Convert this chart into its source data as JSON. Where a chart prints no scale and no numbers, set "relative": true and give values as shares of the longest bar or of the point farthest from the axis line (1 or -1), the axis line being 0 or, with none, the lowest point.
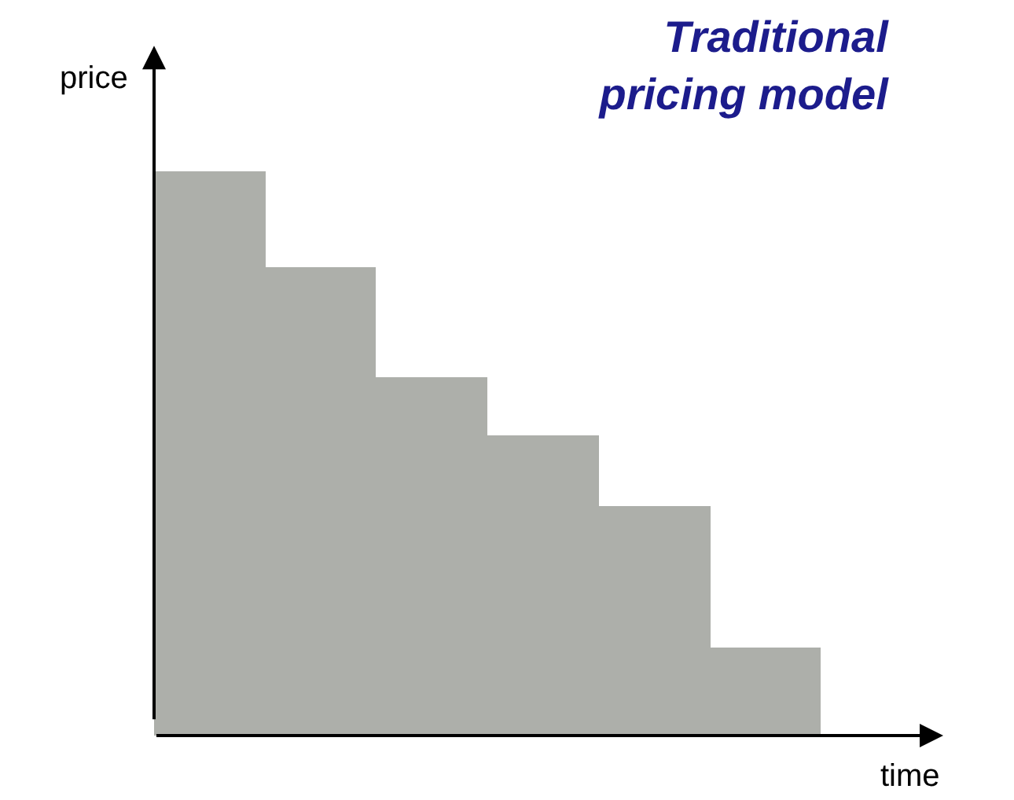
{
  "chart_data": {
    "type": "bar",
    "title": "Traditional\npricing model",
    "xlabel": "time",
    "ylabel": "price",
    "relative": true,
    "categories": [
      null,
      null,
      null,
      null,
      null,
      null
    ],
    "series": [
      {
        "color": "#adafaa",
        "values": [
          1,
          0.83,
          0.635,
          0.532,
          0.407,
          0.156
        ]
      }
    ]
  }
}
